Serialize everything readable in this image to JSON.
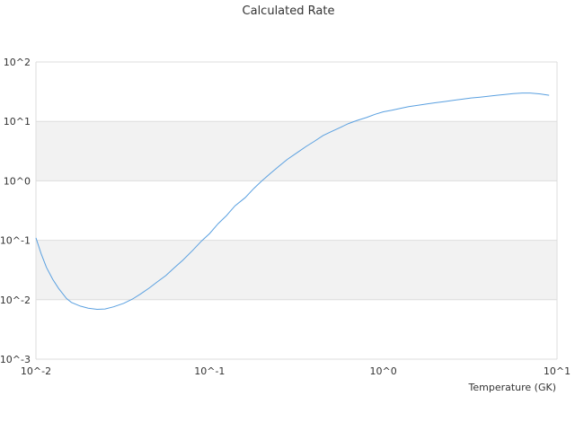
{
  "chart_data": {
    "type": "line",
    "title": "Calculated Rate",
    "xlabel": "Temperature (GK)",
    "ylabel": "",
    "xscale": "log",
    "yscale": "log",
    "xlim": [
      0.01,
      10
    ],
    "ylim": [
      0.001,
      100
    ],
    "x_ticks": [
      "10^-2",
      "10^-1",
      "10^0",
      "10^1"
    ],
    "y_ticks": [
      "10^-3",
      "10^-2",
      "10^-1",
      "10^0",
      "10^1",
      "10^2"
    ],
    "grid": "alternating horizontal bands",
    "legend": "none",
    "series": [
      {
        "color": "#5aa0e0",
        "x": [
          0.01,
          0.0107,
          0.0115,
          0.0125,
          0.0135,
          0.015,
          0.016,
          0.018,
          0.02,
          0.0225,
          0.025,
          0.028,
          0.032,
          0.036,
          0.04,
          0.045,
          0.05,
          0.056,
          0.063,
          0.07,
          0.08,
          0.09,
          0.1,
          0.112,
          0.125,
          0.14,
          0.16,
          0.18,
          0.2,
          0.225,
          0.25,
          0.28,
          0.32,
          0.36,
          0.4,
          0.45,
          0.5,
          0.56,
          0.63,
          0.7,
          0.8,
          0.9,
          1.0,
          1.12,
          1.25,
          1.4,
          1.6,
          1.8,
          2.0,
          2.25,
          2.5,
          2.8,
          3.2,
          3.6,
          4.0,
          4.5,
          5.0,
          5.6,
          6.3,
          7.0,
          8.0,
          9.0
        ],
        "y": [
          0.11,
          0.06,
          0.035,
          0.022,
          0.0155,
          0.0105,
          0.009,
          0.0078,
          0.0072,
          0.0069,
          0.007,
          0.0076,
          0.0087,
          0.0103,
          0.0125,
          0.0158,
          0.02,
          0.0255,
          0.035,
          0.046,
          0.068,
          0.098,
          0.13,
          0.19,
          0.26,
          0.38,
          0.52,
          0.75,
          1.0,
          1.35,
          1.75,
          2.3,
          3.0,
          3.8,
          4.6,
          5.8,
          6.7,
          7.8,
          9.2,
          10.3,
          11.6,
          13.2,
          14.5,
          15.4,
          16.5,
          17.7,
          18.8,
          19.8,
          20.6,
          21.6,
          22.5,
          23.5,
          24.8,
          25.6,
          26.5,
          27.5,
          28.4,
          29.4,
          30.0,
          30.0,
          29.0,
          27.5
        ]
      }
    ]
  }
}
